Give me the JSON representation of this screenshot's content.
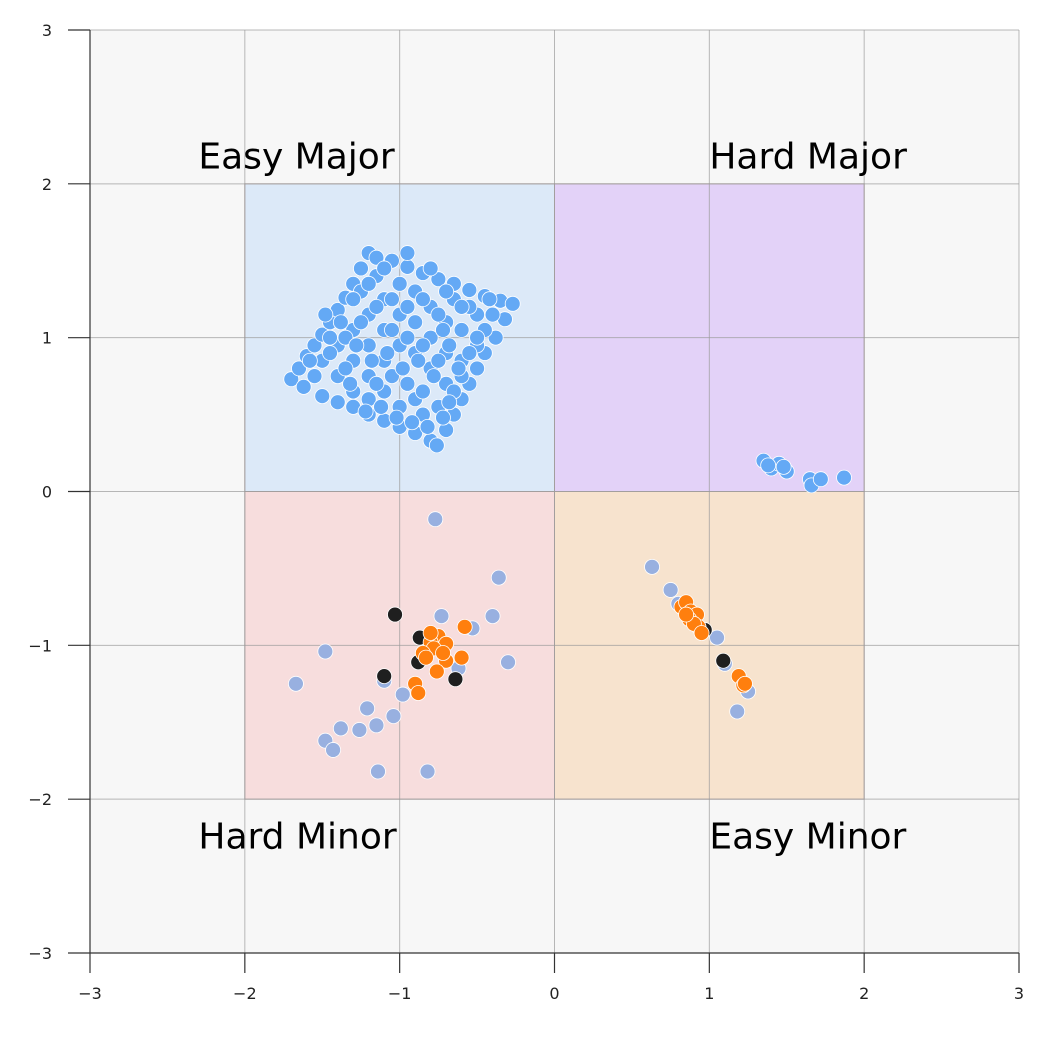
{
  "chart_data": {
    "type": "scatter",
    "title": "",
    "xlabel": "",
    "ylabel": "",
    "xlim": [
      -3,
      3
    ],
    "ylim": [
      -3,
      3
    ],
    "grid": true,
    "x_ticks": [
      -3,
      -2,
      -1,
      0,
      1,
      2,
      3
    ],
    "y_ticks": [
      -3,
      -2,
      -1,
      0,
      1,
      2,
      3
    ],
    "x_tick_labels": [
      "−3",
      "−2",
      "−1",
      "0",
      "1",
      "2",
      "3"
    ],
    "y_tick_labels": [
      "−3",
      "−2",
      "−1",
      "0",
      "1",
      "2",
      "3"
    ],
    "regions": [
      {
        "label": "Easy Major",
        "x": [
          -2,
          0
        ],
        "y": [
          0,
          2
        ],
        "color": "#dce9f8",
        "label_at": [
          -2.3,
          2.1
        ]
      },
      {
        "label": "Hard Major",
        "x": [
          0,
          2
        ],
        "y": [
          0,
          2
        ],
        "color": "#e3d2f8",
        "label_at": [
          1.0,
          2.1
        ]
      },
      {
        "label": "Hard Minor",
        "x": [
          -2,
          0
        ],
        "y": [
          -2,
          0
        ],
        "color": "#f7dddd",
        "label_at": [
          -2.3,
          -2.32
        ]
      },
      {
        "label": "Easy Minor",
        "x": [
          0,
          2
        ],
        "y": [
          -2,
          0
        ],
        "color": "#f7e3ce",
        "label_at": [
          1.0,
          -2.32
        ]
      }
    ],
    "series": [
      {
        "color": "#64a9f5",
        "note_square": {
          "center": [
            -1.0,
            0.95
          ],
          "half_diag_points": [
            [
              -1.7,
              0.73
            ],
            [
              -1.2,
              1.6
            ],
            [
              -0.25,
              1.22
            ],
            [
              -0.75,
              0.28
            ]
          ]
        },
        "points": [
          [
            -1.7,
            0.73
          ],
          [
            -1.65,
            0.8
          ],
          [
            -1.6,
            0.88
          ],
          [
            -1.55,
            0.95
          ],
          [
            -1.5,
            1.02
          ],
          [
            -1.45,
            1.1
          ],
          [
            -1.4,
            1.18
          ],
          [
            -1.35,
            1.26
          ],
          [
            -1.3,
            1.35
          ],
          [
            -1.25,
            1.45
          ],
          [
            -1.2,
            1.55
          ],
          [
            -1.15,
            1.52
          ],
          [
            -1.05,
            1.5
          ],
          [
            -0.95,
            1.46
          ],
          [
            -0.85,
            1.42
          ],
          [
            -0.75,
            1.38
          ],
          [
            -0.65,
            1.35
          ],
          [
            -0.55,
            1.31
          ],
          [
            -0.45,
            1.27
          ],
          [
            -0.35,
            1.24
          ],
          [
            -0.27,
            1.22
          ],
          [
            -1.62,
            0.68
          ],
          [
            -1.5,
            0.62
          ],
          [
            -1.4,
            0.58
          ],
          [
            -1.3,
            0.55
          ],
          [
            -1.2,
            0.5
          ],
          [
            -1.1,
            0.46
          ],
          [
            -1.0,
            0.42
          ],
          [
            -0.9,
            0.38
          ],
          [
            -0.8,
            0.33
          ],
          [
            -0.76,
            0.3
          ],
          [
            -0.32,
            1.12
          ],
          [
            -0.38,
            1.0
          ],
          [
            -0.45,
            0.9
          ],
          [
            -0.5,
            0.8
          ],
          [
            -0.55,
            0.7
          ],
          [
            -0.6,
            0.6
          ],
          [
            -0.65,
            0.5
          ],
          [
            -0.7,
            0.4
          ],
          [
            -1.5,
            0.85
          ],
          [
            -1.4,
            0.95
          ],
          [
            -1.3,
            1.05
          ],
          [
            -1.2,
            1.15
          ],
          [
            -1.1,
            1.25
          ],
          [
            -1.0,
            1.35
          ],
          [
            -0.9,
            1.3
          ],
          [
            -0.8,
            1.2
          ],
          [
            -0.7,
            1.1
          ],
          [
            -0.6,
            1.05
          ],
          [
            -0.5,
            1.15
          ],
          [
            -1.4,
            0.75
          ],
          [
            -1.3,
            0.85
          ],
          [
            -1.2,
            0.95
          ],
          [
            -1.1,
            1.05
          ],
          [
            -1.0,
            1.15
          ],
          [
            -0.9,
            1.1
          ],
          [
            -0.8,
            1.0
          ],
          [
            -0.7,
            0.9
          ],
          [
            -0.6,
            0.85
          ],
          [
            -0.5,
            0.95
          ],
          [
            -1.3,
            0.65
          ],
          [
            -1.2,
            0.75
          ],
          [
            -1.1,
            0.85
          ],
          [
            -1.0,
            0.95
          ],
          [
            -0.9,
            0.9
          ],
          [
            -0.8,
            0.8
          ],
          [
            -0.7,
            0.7
          ],
          [
            -0.6,
            0.75
          ],
          [
            -1.0,
            0.55
          ],
          [
            -0.9,
            0.6
          ],
          [
            -1.1,
            0.65
          ],
          [
            -1.2,
            0.6
          ],
          [
            -0.85,
            0.5
          ],
          [
            -0.95,
            0.7
          ],
          [
            -1.25,
            1.3
          ],
          [
            -1.15,
            1.4
          ],
          [
            -1.05,
            1.25
          ],
          [
            -0.95,
            1.2
          ],
          [
            -0.85,
            1.25
          ],
          [
            -0.75,
            1.15
          ],
          [
            -0.65,
            1.25
          ],
          [
            -0.55,
            1.2
          ],
          [
            -0.45,
            1.05
          ],
          [
            -0.4,
            1.15
          ],
          [
            -1.45,
            0.9
          ],
          [
            -1.35,
            1.0
          ],
          [
            -1.25,
            1.1
          ],
          [
            -1.15,
            1.2
          ],
          [
            -1.05,
            1.05
          ],
          [
            -0.95,
            1.0
          ],
          [
            -0.85,
            0.95
          ],
          [
            -0.75,
            0.85
          ],
          [
            -0.65,
            0.65
          ],
          [
            -0.75,
            0.55
          ],
          [
            -0.85,
            0.65
          ],
          [
            -1.05,
            0.75
          ],
          [
            -1.15,
            0.7
          ],
          [
            -1.35,
            0.8
          ],
          [
            -1.55,
            0.75
          ],
          [
            -1.45,
            1.0
          ],
          [
            -1.2,
            1.35
          ],
          [
            -1.1,
            1.45
          ],
          [
            -1.3,
            1.25
          ],
          [
            -0.95,
            1.55
          ],
          [
            -0.8,
            1.45
          ],
          [
            -0.7,
            1.3
          ],
          [
            -0.6,
            1.2
          ],
          [
            -0.5,
            1.0
          ],
          [
            -0.55,
            0.9
          ],
          [
            -0.62,
            0.8
          ],
          [
            -0.68,
            0.95
          ],
          [
            -0.72,
            1.05
          ],
          [
            -0.78,
            0.75
          ],
          [
            -0.88,
            0.85
          ],
          [
            -0.98,
            0.8
          ],
          [
            -1.08,
            0.9
          ],
          [
            -1.18,
            0.85
          ],
          [
            -1.28,
            0.95
          ],
          [
            -1.38,
            1.1
          ],
          [
            -1.48,
            1.15
          ],
          [
            -1.58,
            0.85
          ],
          [
            -1.02,
            0.48
          ],
          [
            -0.92,
            0.45
          ],
          [
            -0.82,
            0.42
          ],
          [
            -0.72,
            0.48
          ],
          [
            -0.68,
            0.58
          ],
          [
            -1.12,
            0.55
          ],
          [
            -1.22,
            0.52
          ],
          [
            -1.32,
            0.7
          ],
          [
            -0.42,
            1.25
          ],
          [
            1.35,
            0.2
          ],
          [
            1.4,
            0.15
          ],
          [
            1.45,
            0.18
          ],
          [
            1.5,
            0.13
          ],
          [
            1.48,
            0.16
          ],
          [
            1.65,
            0.08
          ],
          [
            1.66,
            0.04
          ],
          [
            1.72,
            0.08
          ],
          [
            1.87,
            0.09
          ],
          [
            1.38,
            0.17
          ]
        ]
      },
      {
        "color": "#98b0e0",
        "points": [
          [
            -0.77,
            -0.18
          ],
          [
            -0.36,
            -0.56
          ],
          [
            -0.4,
            -0.81
          ],
          [
            -0.53,
            -0.89
          ],
          [
            -0.3,
            -1.11
          ],
          [
            -0.73,
            -0.81
          ],
          [
            -0.62,
            -1.15
          ],
          [
            -1.48,
            -1.04
          ],
          [
            -1.67,
            -1.25
          ],
          [
            -1.1,
            -1.23
          ],
          [
            -0.98,
            -1.32
          ],
          [
            -1.04,
            -1.46
          ],
          [
            -1.21,
            -1.41
          ],
          [
            -1.15,
            -1.52
          ],
          [
            -1.26,
            -1.55
          ],
          [
            -1.38,
            -1.54
          ],
          [
            -1.48,
            -1.62
          ],
          [
            -1.43,
            -1.68
          ],
          [
            -1.14,
            -1.82
          ],
          [
            -0.82,
            -1.82
          ],
          [
            0.63,
            -0.49
          ],
          [
            0.75,
            -0.64
          ],
          [
            0.8,
            -0.73
          ],
          [
            0.9,
            -0.83
          ],
          [
            1.1,
            -1.12
          ],
          [
            1.25,
            -1.3
          ],
          [
            1.18,
            -1.43
          ],
          [
            1.05,
            -0.95
          ]
        ]
      },
      {
        "color": "#1f1f1f",
        "points": [
          [
            -1.03,
            -0.8
          ],
          [
            -0.87,
            -0.95
          ],
          [
            -0.88,
            -1.11
          ],
          [
            -1.1,
            -1.2
          ],
          [
            -0.64,
            -1.22
          ],
          [
            1.09,
            -1.1
          ],
          [
            0.97,
            -0.9
          ]
        ]
      },
      {
        "color": "#ff7f0e",
        "points": [
          [
            -0.58,
            -0.88
          ],
          [
            -0.75,
            -0.94
          ],
          [
            -0.8,
            -0.98
          ],
          [
            -0.7,
            -0.99
          ],
          [
            -0.78,
            -1.02
          ],
          [
            -0.85,
            -1.05
          ],
          [
            -0.6,
            -1.08
          ],
          [
            -0.7,
            -1.1
          ],
          [
            -0.76,
            -1.17
          ],
          [
            -0.83,
            -1.08
          ],
          [
            -0.9,
            -1.25
          ],
          [
            -0.88,
            -1.31
          ],
          [
            -0.72,
            -1.05
          ],
          [
            -0.8,
            -0.92
          ],
          [
            0.82,
            -0.75
          ],
          [
            0.85,
            -0.72
          ],
          [
            0.88,
            -0.78
          ],
          [
            0.92,
            -0.8
          ],
          [
            0.87,
            -0.83
          ],
          [
            0.93,
            -0.88
          ],
          [
            0.9,
            -0.86
          ],
          [
            0.95,
            -0.92
          ],
          [
            0.85,
            -0.8
          ],
          [
            1.19,
            -1.2
          ],
          [
            1.22,
            -1.26
          ],
          [
            1.23,
            -1.25
          ]
        ]
      }
    ]
  }
}
